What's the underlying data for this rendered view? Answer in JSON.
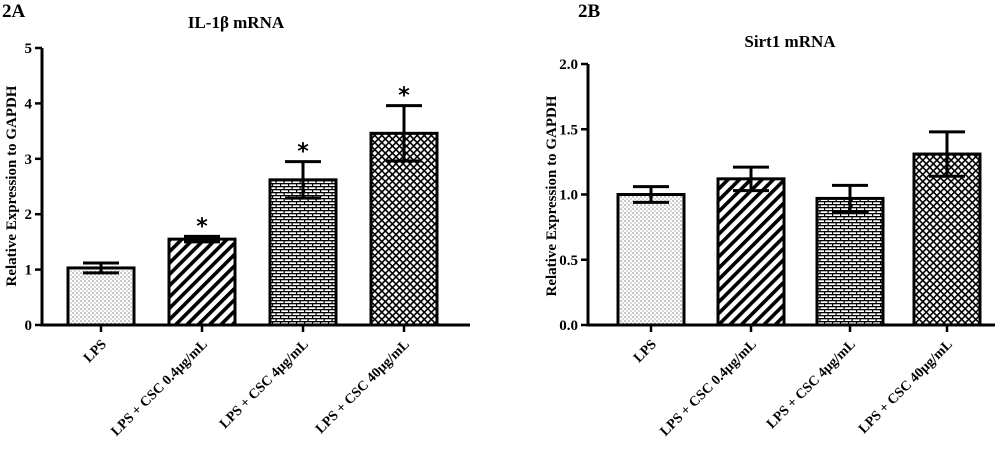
{
  "chart_data": [
    {
      "panel_label": "2A",
      "type": "bar",
      "title": "IL-1β mRNA",
      "ylabel": "Relative Expression to GAPDH",
      "xlabel": "",
      "ylim": [
        0,
        5
      ],
      "yticks": [
        "0",
        "1",
        "2",
        "3",
        "4",
        "5"
      ],
      "categories": [
        "LPS",
        "LPS + CSC 0.4μg/mL",
        "LPS + CSC 4μg/mL",
        "LPS + CSC 40μg/mL"
      ],
      "values": [
        1.03,
        1.55,
        2.62,
        3.46
      ],
      "errors": [
        0.09,
        0.05,
        0.33,
        0.5
      ],
      "significance": [
        "",
        "*",
        "*",
        "*"
      ],
      "patterns": [
        "dots",
        "diagonal",
        "bricks",
        "crosshatch"
      ],
      "grid": false,
      "legend": "none"
    },
    {
      "panel_label": "2B",
      "type": "bar",
      "title": "Sirt1 mRNA",
      "ylabel": "Relative Expression to GAPDH",
      "xlabel": "",
      "ylim": [
        0,
        2
      ],
      "yticks": [
        "0.0",
        "0.5",
        "1.0",
        "1.5",
        "2.0"
      ],
      "categories": [
        "LPS",
        "LPS + CSC 0.4μg/mL",
        "LPS + CSC 4μg/mL",
        "LPS + CSC 40μg/mL"
      ],
      "values": [
        1.0,
        1.12,
        0.97,
        1.31
      ],
      "errors": [
        0.06,
        0.09,
        0.1,
        0.17
      ],
      "significance": [
        "",
        "",
        "",
        ""
      ],
      "patterns": [
        "dots",
        "diagonal",
        "bricks",
        "crosshatch"
      ],
      "grid": false,
      "legend": "none"
    }
  ]
}
